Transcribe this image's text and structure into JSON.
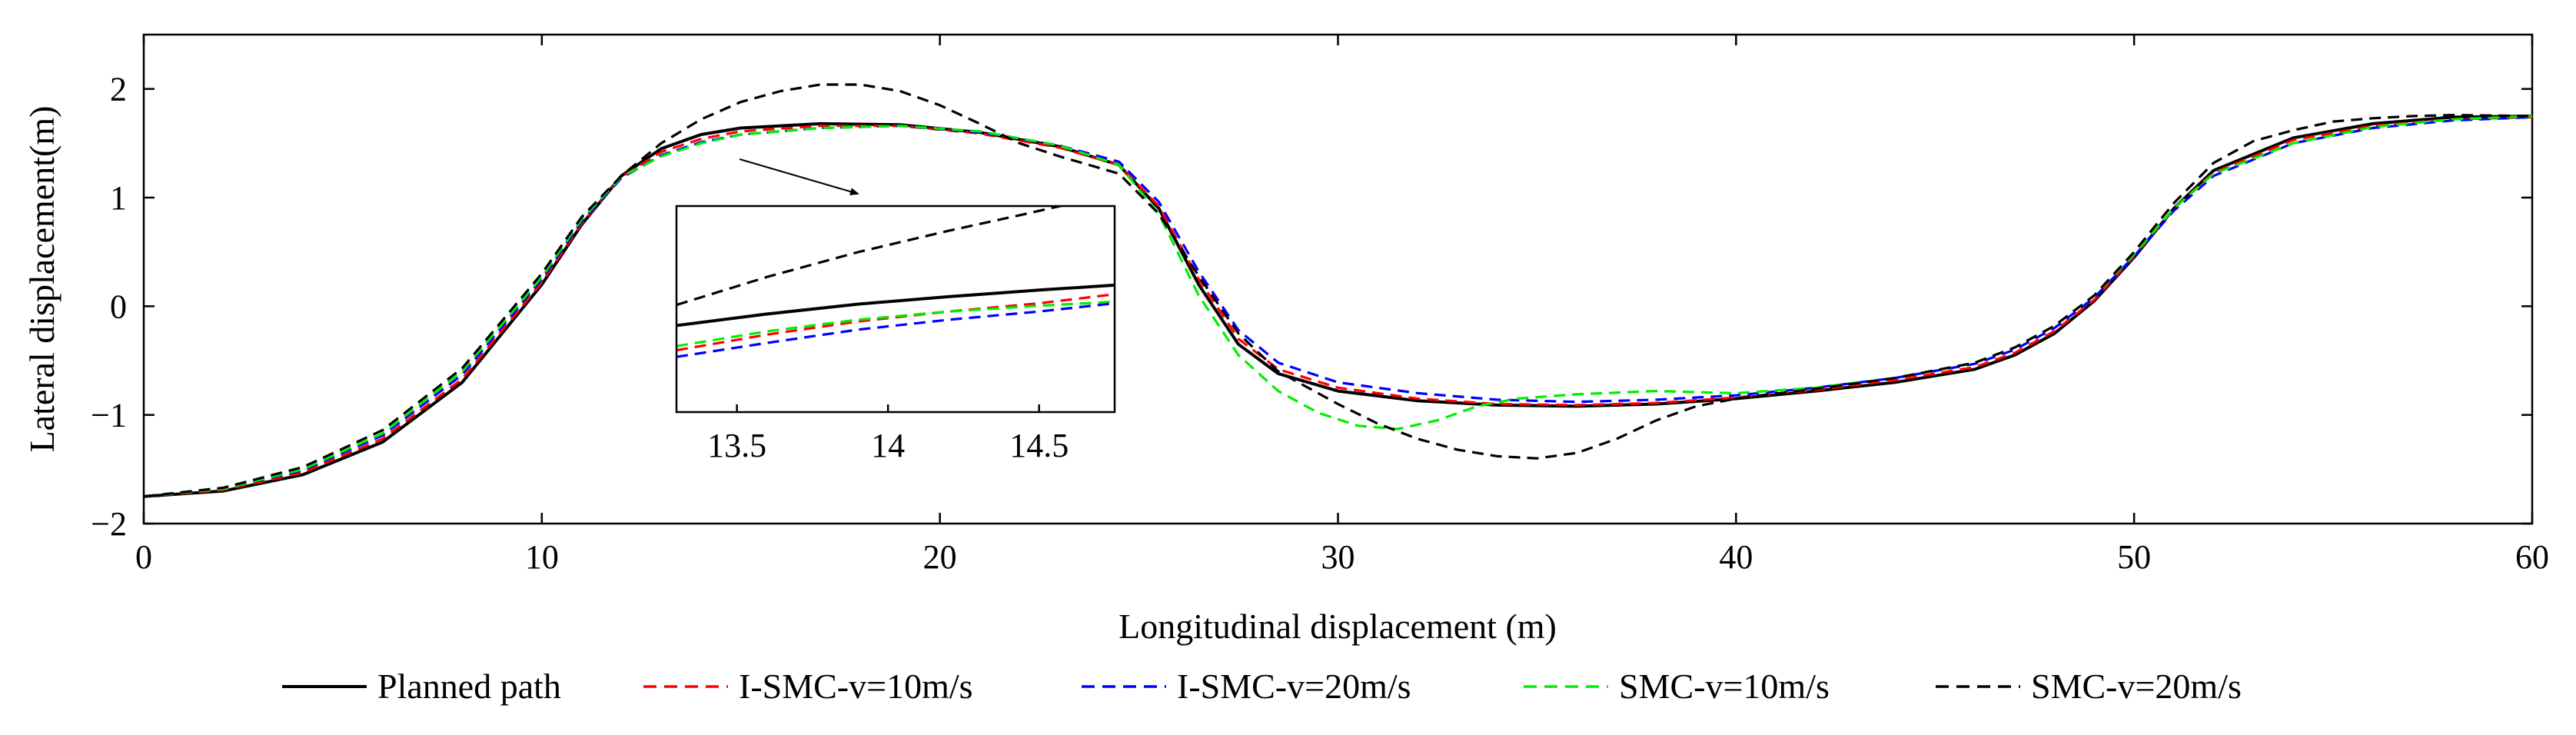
{
  "chart_data": {
    "type": "line",
    "title": "",
    "xlabel": "Longitudinal displacement (m)",
    "ylabel": "Lateral displacement(m)",
    "xlim": [
      0,
      60
    ],
    "ylim": [
      -2,
      2.5
    ],
    "xticks": [
      0,
      10,
      20,
      30,
      40,
      50,
      60
    ],
    "yticks": [
      -2,
      -1,
      0,
      1,
      2
    ],
    "xtick_labels": [
      "0",
      "10",
      "20",
      "30",
      "40",
      "50",
      "60"
    ],
    "ytick_labels": [
      "−2",
      "−1",
      "0",
      "1",
      "2"
    ],
    "grid": false,
    "legend_position": "bottom",
    "colors": {
      "planned": "#000000",
      "isMC10": "#ff0000",
      "isMC20": "#0000ff",
      "smc10": "#00ee00",
      "smc20": "#000000"
    },
    "series": [
      {
        "name": "Planned path",
        "key": "planned",
        "dash": "solid",
        "x": [
          0,
          2,
          4,
          6,
          8,
          10,
          11,
          12,
          13,
          14,
          15,
          17,
          19,
          21,
          23,
          24.5,
          25.5,
          26.5,
          27.5,
          28.5,
          30,
          32,
          34,
          36,
          38,
          40,
          42,
          44,
          46,
          47,
          48,
          49,
          50,
          51,
          52,
          54,
          56,
          58,
          60
        ],
        "y": [
          -1.75,
          -1.7,
          -1.55,
          -1.25,
          -0.7,
          0.2,
          0.75,
          1.2,
          1.45,
          1.58,
          1.64,
          1.68,
          1.67,
          1.6,
          1.47,
          1.3,
          0.9,
          0.2,
          -0.35,
          -0.62,
          -0.78,
          -0.87,
          -0.91,
          -0.92,
          -0.9,
          -0.85,
          -0.78,
          -0.7,
          -0.58,
          -0.45,
          -0.25,
          0.05,
          0.45,
          0.9,
          1.25,
          1.55,
          1.68,
          1.74,
          1.75
        ]
      },
      {
        "name": "I-SMC-v=10m/s",
        "key": "isMC10",
        "dash": "dashed",
        "x": [
          0,
          2,
          4,
          6,
          8,
          10,
          11,
          12,
          13,
          14,
          15,
          17,
          19,
          21,
          23,
          24.5,
          25.5,
          26.5,
          27.5,
          28.5,
          30,
          32,
          34,
          36,
          38,
          40,
          42,
          44,
          46,
          47,
          48,
          49,
          50,
          51,
          52,
          54,
          56,
          58,
          60
        ],
        "y": [
          -1.75,
          -1.69,
          -1.53,
          -1.22,
          -0.67,
          0.22,
          0.76,
          1.19,
          1.42,
          1.54,
          1.61,
          1.66,
          1.66,
          1.59,
          1.46,
          1.3,
          0.92,
          0.25,
          -0.3,
          -0.58,
          -0.75,
          -0.85,
          -0.9,
          -0.91,
          -0.89,
          -0.84,
          -0.77,
          -0.68,
          -0.56,
          -0.43,
          -0.23,
          0.06,
          0.46,
          0.9,
          1.23,
          1.53,
          1.66,
          1.72,
          1.74
        ]
      },
      {
        "name": "I-SMC-v=20m/s",
        "key": "isMC20",
        "dash": "dashed",
        "x": [
          0,
          2,
          4,
          6,
          8,
          10,
          11,
          12,
          13,
          14,
          15,
          17,
          19,
          21,
          23,
          24.5,
          25.5,
          26.5,
          27.5,
          28.5,
          30,
          32,
          34,
          36,
          38,
          40,
          42,
          44,
          46,
          47,
          48,
          49,
          50,
          51,
          52,
          54,
          56,
          58,
          60
        ],
        "y": [
          -1.75,
          -1.68,
          -1.51,
          -1.19,
          -0.63,
          0.25,
          0.78,
          1.18,
          1.39,
          1.51,
          1.58,
          1.64,
          1.66,
          1.6,
          1.48,
          1.33,
          0.96,
          0.32,
          -0.22,
          -0.52,
          -0.7,
          -0.8,
          -0.86,
          -0.88,
          -0.86,
          -0.82,
          -0.75,
          -0.66,
          -0.53,
          -0.4,
          -0.2,
          0.08,
          0.46,
          0.88,
          1.2,
          1.5,
          1.64,
          1.71,
          1.74
        ]
      },
      {
        "name": "SMC-v=10m/s",
        "key": "smc10",
        "dash": "dashed",
        "x": [
          0,
          2,
          4,
          6,
          8,
          10,
          11,
          12,
          13,
          14,
          15,
          17,
          19,
          21,
          23,
          24.5,
          25.5,
          26.5,
          27.5,
          28.5,
          29.5,
          30.5,
          31.5,
          32.5,
          33.5,
          34.5,
          36,
          38,
          40,
          42,
          44,
          46,
          47,
          48,
          49,
          50,
          51,
          52,
          54,
          56,
          58,
          60
        ],
        "y": [
          -1.75,
          -1.68,
          -1.5,
          -1.17,
          -0.6,
          0.27,
          0.8,
          1.19,
          1.38,
          1.5,
          1.58,
          1.64,
          1.66,
          1.61,
          1.48,
          1.3,
          0.85,
          0.1,
          -0.45,
          -0.78,
          -0.98,
          -1.1,
          -1.13,
          -1.05,
          -0.92,
          -0.85,
          -0.81,
          -0.78,
          -0.8,
          -0.75,
          -0.66,
          -0.52,
          -0.38,
          -0.18,
          0.1,
          0.48,
          0.9,
          1.22,
          1.5,
          1.65,
          1.72,
          1.75
        ]
      },
      {
        "name": "SMC-v=20m/s",
        "key": "smc20",
        "dash": "dashed",
        "x": [
          0,
          2,
          4,
          6,
          8,
          10,
          11,
          12,
          13,
          14,
          15,
          16,
          17,
          18,
          19,
          20,
          21,
          22,
          23,
          24.5,
          25.5,
          26.5,
          27.5,
          28.5,
          30,
          31,
          32,
          33,
          34,
          35,
          36,
          37,
          38,
          39,
          40,
          42,
          44,
          46,
          47,
          48,
          49,
          50,
          51,
          52,
          53,
          54,
          55,
          56,
          57,
          58,
          60
        ],
        "y": [
          -1.75,
          -1.67,
          -1.48,
          -1.14,
          -0.57,
          0.3,
          0.82,
          1.2,
          1.5,
          1.72,
          1.88,
          1.98,
          2.04,
          2.04,
          1.98,
          1.85,
          1.68,
          1.5,
          1.38,
          1.22,
          0.85,
          0.28,
          -0.25,
          -0.6,
          -0.9,
          -1.08,
          -1.22,
          -1.32,
          -1.38,
          -1.4,
          -1.35,
          -1.22,
          -1.05,
          -0.92,
          -0.85,
          -0.76,
          -0.66,
          -0.52,
          -0.38,
          -0.18,
          0.1,
          0.5,
          0.95,
          1.32,
          1.52,
          1.62,
          1.7,
          1.73,
          1.75,
          1.76,
          1.75
        ]
      }
    ],
    "inset": {
      "xlim": [
        13.3,
        14.75
      ],
      "ylim": [
        1.5,
        1.75
      ],
      "xticks": [
        13.5,
        14,
        14.5
      ],
      "xtick_labels": [
        "13.5",
        "14",
        "14.5"
      ],
      "annotation": "arrow from curve to inset",
      "series": [
        {
          "key": "smc20",
          "dash": "dashed",
          "x": [
            13.3,
            13.6,
            13.9,
            14.2,
            14.45,
            14.75
          ],
          "y": [
            1.63,
            1.664,
            1.694,
            1.72,
            1.74,
            1.765
          ]
        },
        {
          "key": "planned",
          "dash": "solid",
          "x": [
            13.3,
            13.6,
            13.9,
            14.2,
            14.5,
            14.75
          ],
          "y": [
            1.605,
            1.619,
            1.631,
            1.64,
            1.648,
            1.654
          ]
        },
        {
          "key": "isMC10",
          "dash": "dashed",
          "x": [
            13.3,
            13.6,
            13.9,
            14.2,
            14.5,
            14.75
          ],
          "y": [
            1.575,
            1.594,
            1.61,
            1.622,
            1.632,
            1.643
          ]
        },
        {
          "key": "smc10",
          "dash": "dashed",
          "x": [
            13.3,
            13.6,
            13.9,
            14.2,
            14.5,
            14.75
          ],
          "y": [
            1.58,
            1.598,
            1.612,
            1.622,
            1.629,
            1.634
          ]
        },
        {
          "key": "isMC20",
          "dash": "dashed",
          "x": [
            13.3,
            13.6,
            13.9,
            14.2,
            14.5,
            14.75
          ],
          "y": [
            1.567,
            1.584,
            1.6,
            1.612,
            1.622,
            1.632
          ]
        }
      ]
    }
  }
}
